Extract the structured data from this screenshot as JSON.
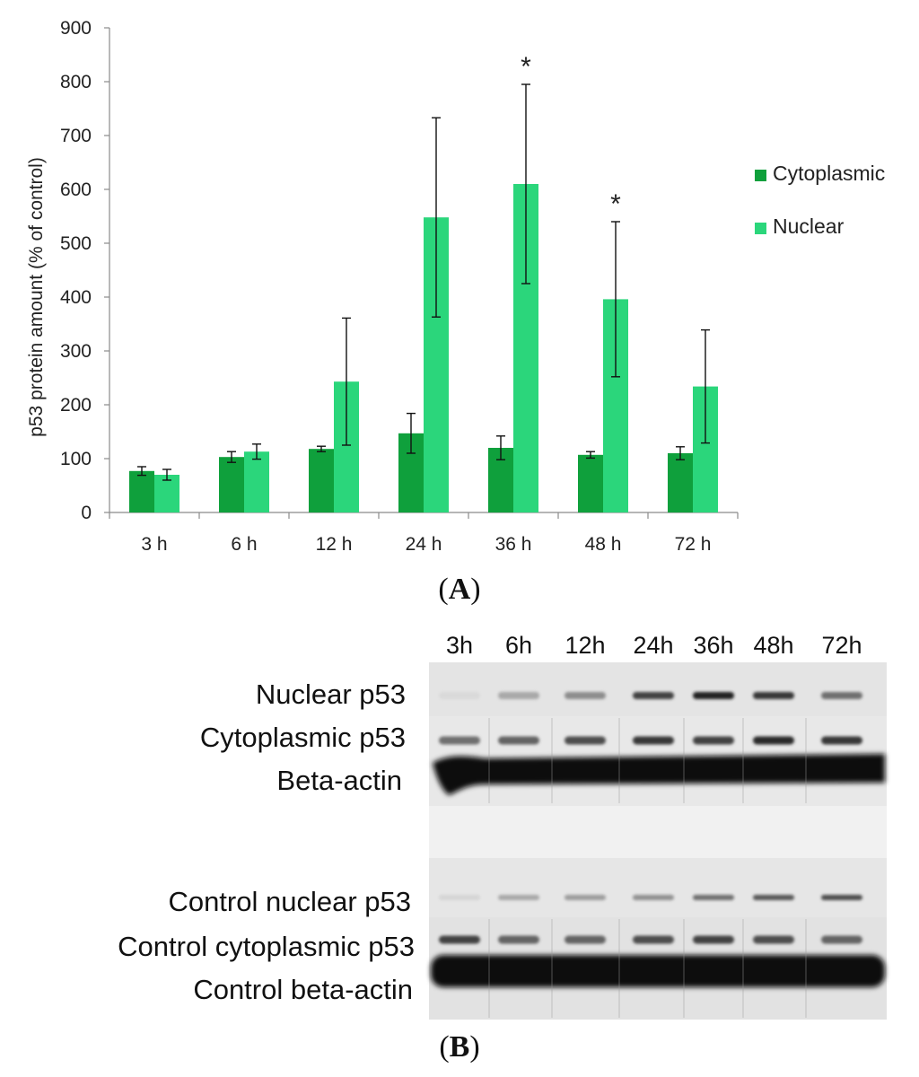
{
  "chart_data": {
    "type": "bar",
    "ylabel": "p53 protein amount (% of control)",
    "xlabel": "",
    "ylim": [
      0,
      900
    ],
    "yticks": [
      0,
      100,
      200,
      300,
      400,
      500,
      600,
      700,
      800,
      900
    ],
    "categories": [
      "3 h",
      "6 h",
      "12 h",
      "24 h",
      "36 h",
      "48 h",
      "72 h"
    ],
    "series": [
      {
        "name": "Cytoplasmic",
        "color": "#0fa03c",
        "values": [
          77,
          103,
          118,
          147,
          120,
          107,
          110
        ],
        "errors": [
          8,
          10,
          5,
          37,
          22,
          6,
          12
        ]
      },
      {
        "name": "Nuclear",
        "color": "#2bd67b",
        "values": [
          70,
          113,
          243,
          548,
          610,
          396,
          234
        ],
        "errors": [
          10,
          14,
          118,
          185,
          185,
          144,
          105
        ]
      }
    ],
    "significance_markers": [
      {
        "category": "36 h",
        "series": "Nuclear",
        "symbol": "*"
      },
      {
        "category": "48 h",
        "series": "Nuclear",
        "symbol": "*"
      }
    ],
    "legend_position": "right",
    "grid": false
  },
  "panels": {
    "a_label": "A",
    "b_label": "B"
  },
  "blot": {
    "lanes": [
      "3h",
      "6h",
      "12h",
      "24h",
      "36h",
      "48h",
      "72h"
    ],
    "row_labels": {
      "nuclear": "Nuclear p53",
      "cytoplasmic": "Cytoplasmic p53",
      "actin": "Beta-actin",
      "control_nuclear": "Control nuclear p53",
      "control_cytoplasmic": "Control cytoplasmic p53",
      "control_actin": "Control beta-actin"
    },
    "band_intensity": {
      "nuclear": [
        0.08,
        0.3,
        0.42,
        0.75,
        0.9,
        0.8,
        0.55
      ],
      "cytoplasmic": [
        0.55,
        0.6,
        0.7,
        0.8,
        0.75,
        0.85,
        0.8
      ],
      "control_nuclear": [
        0.1,
        0.3,
        0.35,
        0.4,
        0.55,
        0.65,
        0.7
      ],
      "control_cytoplasmic": [
        0.75,
        0.6,
        0.6,
        0.7,
        0.75,
        0.7,
        0.6
      ]
    }
  }
}
